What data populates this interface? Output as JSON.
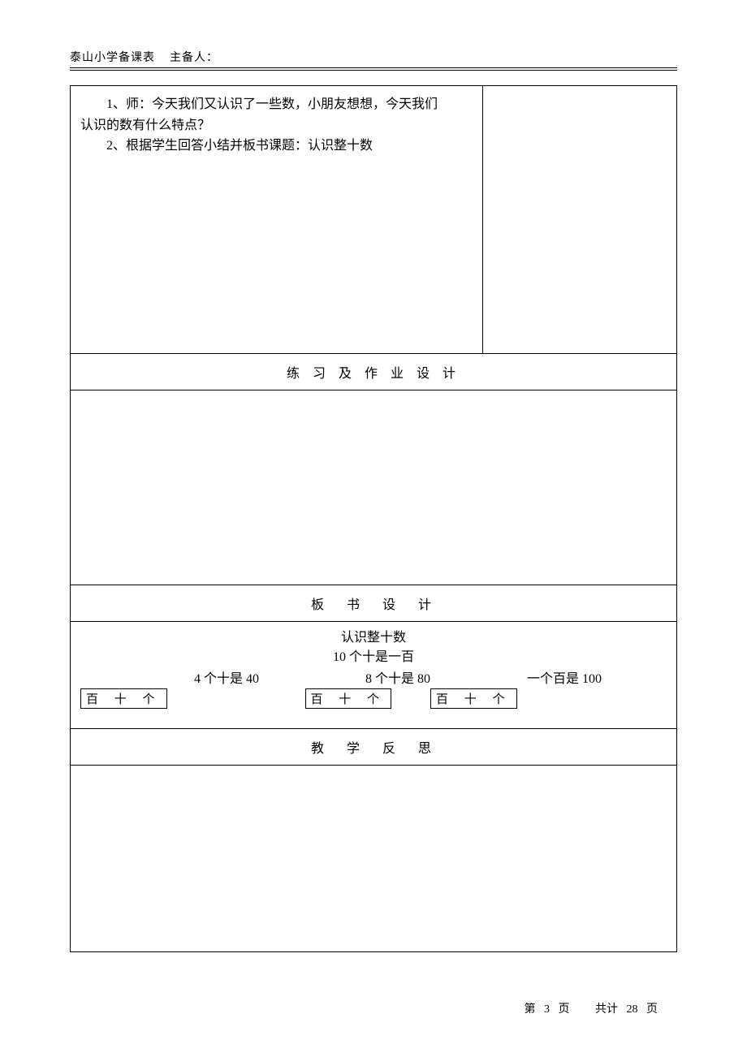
{
  "header": {
    "school": "泰山小学备课表",
    "preparer_label": "主备人："
  },
  "content": {
    "line1": "1、师：今天我们又认识了一些数，小朋友想想，今天我们",
    "line1b": "认识的数有什么特点？",
    "line2": "2、根据学生回答小结并板书课题：认识整十数"
  },
  "sections": {
    "exercise": "练 习 及 作 业 设 计",
    "banshu": "板　书　设　计",
    "fansi": "教　学　反　思"
  },
  "banshu": {
    "title": "认识整十数",
    "sub1": "10 个十是一百",
    "row_left": "4 个十是 40",
    "row_mid": "8 个十是 80",
    "row_right": "一个百是 100",
    "box": "百 十 个"
  },
  "footer": {
    "page_label_left": "第",
    "page_num": "3",
    "page_label_mid": "页",
    "total_label": "共计",
    "total_num": "28",
    "total_label_end": "页"
  }
}
